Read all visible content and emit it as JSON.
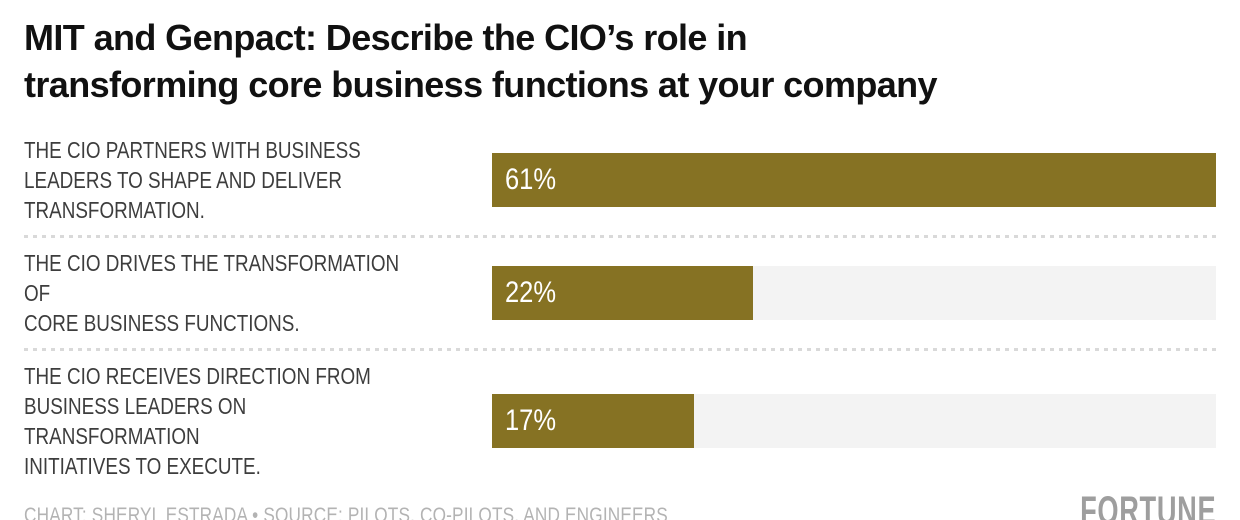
{
  "header": {
    "title": "MIT and Genpact: Describe the CIO’s role in\ntransforming core business functions at your company"
  },
  "rows": [
    {
      "label": "THE CIO PARTNERS WITH BUSINESS\nLEADERS TO SHAPE AND DELIVER\nTRANSFORMATION.",
      "value": 61,
      "value_label": "61%"
    },
    {
      "label": "THE CIO DRIVES THE TRANSFORMATION OF\nCORE BUSINESS FUNCTIONS.",
      "value": 22,
      "value_label": "22%"
    },
    {
      "label": "THE CIO RECEIVES DIRECTION FROM\nBUSINESS LEADERS ON TRANSFORMATION\nINITIATIVES TO EXECUTE.",
      "value": 17,
      "value_label": "17%"
    }
  ],
  "footer": {
    "credits": "CHART: SHERYL ESTRADA • SOURCE: PILOTS, CO-PILOTS, AND ENGINEERS",
    "brand": "FORTUNE"
  },
  "colors": {
    "bar": "#867223",
    "track": "#f3f3f3",
    "title_text": "#111111",
    "label_text": "#3d3d3d",
    "separator": "#d9d9d9",
    "credits_text": "#b3b3b3",
    "brand_text": "#9e9e9e",
    "value_text": "#ffffff"
  },
  "chart_data": {
    "type": "bar",
    "orientation": "horizontal",
    "title": "MIT and Genpact: Describe the CIO’s role in transforming core business functions at your company",
    "categories": [
      "THE CIO PARTNERS WITH BUSINESS LEADERS TO SHAPE AND DELIVER TRANSFORMATION.",
      "THE CIO DRIVES THE TRANSFORMATION OF CORE BUSINESS FUNCTIONS.",
      "THE CIO RECEIVES DIRECTION FROM BUSINESS LEADERS ON TRANSFORMATION INITIATIVES TO EXECUTE."
    ],
    "values": [
      61,
      22,
      17
    ],
    "value_labels": [
      "61%",
      "22%",
      "17%"
    ],
    "xlim": [
      0,
      61
    ],
    "bar_scale_note": "bars scaled so max value (61) fills full track width",
    "grid": false,
    "legend": false,
    "data_labels_position": "inside-left",
    "bar_color": "#867223",
    "track_color": "#f3f3f3"
  }
}
